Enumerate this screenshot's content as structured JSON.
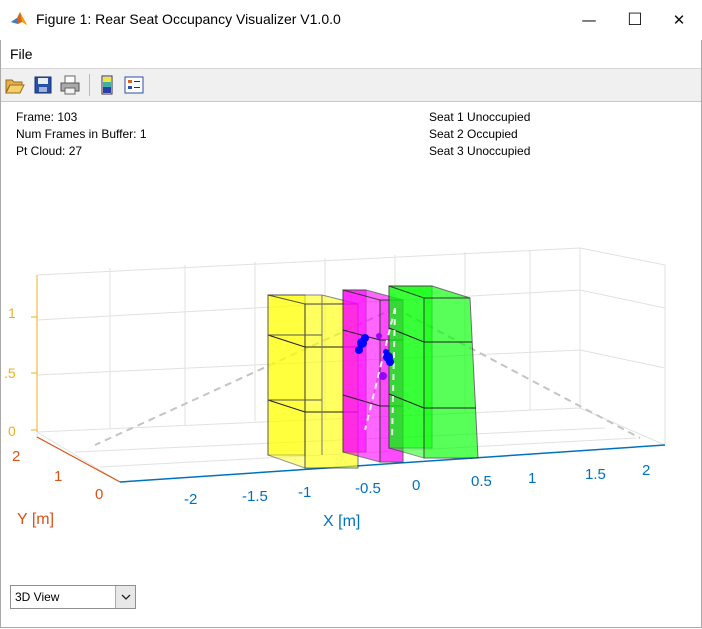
{
  "window": {
    "title": "Figure 1: Rear Seat Occupancy Visualizer V1.0.0",
    "minimize_glyph": "—",
    "maximize_glyph": "☐",
    "close_glyph": "✕"
  },
  "menu": {
    "file_label": "File"
  },
  "toolbar": {
    "icons": [
      "open-folder-icon",
      "save-icon",
      "print-icon",
      "colorbar-icon",
      "legend-icon"
    ]
  },
  "info": {
    "frame": "Frame: 103",
    "buffer": "Num Frames in Buffer: 1",
    "ptcloud": "Pt Cloud: 27",
    "seat1": "Seat 1 Unoccupied",
    "seat2": "Seat 2 Occupied",
    "seat3": "Seat 3 Unoccupied"
  },
  "plot": {
    "x_label": "X [m]",
    "y_label": "Y [m]",
    "x_ticks": [
      "-2",
      "-1.5",
      "-1",
      "-0.5",
      "0",
      "0.5",
      "1",
      "1.5",
      "2"
    ],
    "y_ticks": [
      "2",
      "1",
      "0"
    ],
    "z_ticks": [
      "1",
      ".5",
      "0"
    ],
    "colors": {
      "x_axis": "#0072bd",
      "y_axis": "#d95319",
      "z_axis": "#edb120",
      "seat1": "#ffff00",
      "seat2": "#ff00ff",
      "seat3": "#00ff00",
      "points": "#0000ff"
    }
  },
  "view_select": {
    "value": "3D View"
  }
}
